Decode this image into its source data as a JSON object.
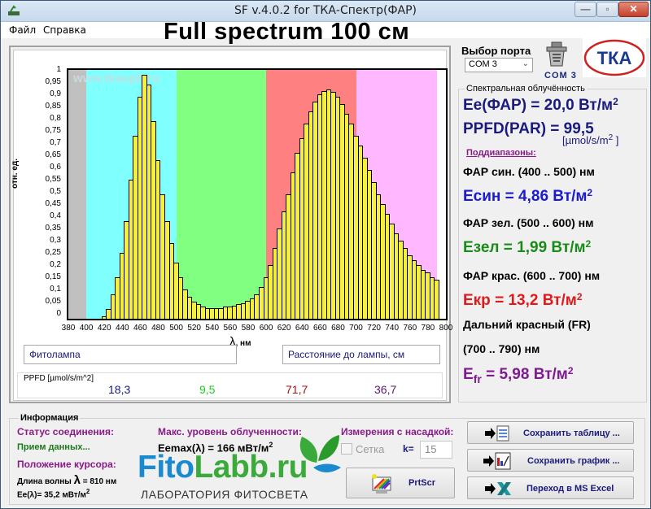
{
  "window": {
    "title": "SF v.4.0.2 for ТКА-Спектр(ФАР)",
    "controls": {
      "minimize": "—",
      "maximize": "▫",
      "close": "✕"
    }
  },
  "menu": {
    "items": [
      {
        "label": "Файл"
      },
      {
        "label": "Справка"
      }
    ]
  },
  "header": {
    "title": "Full spectrum 100 см"
  },
  "chart": {
    "watermark": "www.tkaspb.ru",
    "ylabel": "отн. ед.",
    "xlabel_symbol": "λ",
    "xlabel_unit": ", нм",
    "lamp_field": "Фитолампа",
    "distance_field": "Расстояние до лампы,  см",
    "ppfd_label": "PPFD [µmol/s/m^2]",
    "ppfd_values": [
      {
        "value": "18,3",
        "color": "#1a1a80"
      },
      {
        "value": "9,5",
        "color": "#22cc22"
      },
      {
        "value": "71,7",
        "color": "#aa1111"
      },
      {
        "value": "36,7",
        "color": "#5a1a6a"
      }
    ]
  },
  "chart_data": {
    "type": "bar",
    "title": "Full spectrum 100 см",
    "xlabel": "λ, нм",
    "ylabel": "отн. ед.",
    "xlim": [
      380,
      800
    ],
    "ylim": [
      0,
      1
    ],
    "x_ticks": [
      "380",
      "400",
      "420",
      "440",
      "460",
      "480",
      "500",
      "520",
      "540",
      "560",
      "580",
      "600",
      "620",
      "640",
      "660",
      "680",
      "700",
      "720",
      "740",
      "760",
      "780",
      "800"
    ],
    "y_ticks": [
      "0",
      "0,05",
      "0,1",
      "0,15",
      "0,2",
      "0,25",
      "0,3",
      "0,35",
      "0,4",
      "0,45",
      "0,5",
      "0,55",
      "0,6",
      "0,65",
      "0,7",
      "0,75",
      "0,8",
      "0,85",
      "0,9",
      "0,95",
      "1"
    ],
    "bands": [
      {
        "from": 380,
        "to": 400,
        "color": "#c0c0c0"
      },
      {
        "from": 400,
        "to": 500,
        "color": "#80ffff"
      },
      {
        "from": 500,
        "to": 600,
        "color": "#80ff80"
      },
      {
        "from": 600,
        "to": 700,
        "color": "#ff8080"
      },
      {
        "from": 700,
        "to": 790,
        "color": "#ffb8ff"
      }
    ],
    "bar_color": "#f5f040",
    "x": [
      400,
      405,
      410,
      415,
      420,
      425,
      430,
      435,
      440,
      445,
      450,
      455,
      460,
      465,
      470,
      475,
      480,
      485,
      490,
      495,
      500,
      505,
      510,
      515,
      520,
      525,
      530,
      535,
      540,
      545,
      550,
      555,
      560,
      565,
      570,
      575,
      580,
      585,
      590,
      595,
      600,
      605,
      610,
      615,
      620,
      625,
      630,
      635,
      640,
      645,
      650,
      655,
      660,
      665,
      670,
      675,
      680,
      685,
      690,
      695,
      700,
      705,
      710,
      715,
      720,
      725,
      730,
      735,
      740,
      745,
      750,
      755,
      760,
      765,
      770,
      775,
      780,
      785
    ],
    "values": [
      0,
      0,
      0,
      0.01,
      0.04,
      0.1,
      0.17,
      0.27,
      0.4,
      0.57,
      0.75,
      0.91,
      1.0,
      0.96,
      0.81,
      0.65,
      0.51,
      0.4,
      0.31,
      0.23,
      0.17,
      0.12,
      0.09,
      0.07,
      0.06,
      0.05,
      0.045,
      0.045,
      0.045,
      0.045,
      0.05,
      0.05,
      0.055,
      0.06,
      0.065,
      0.075,
      0.085,
      0.1,
      0.13,
      0.17,
      0.22,
      0.29,
      0.37,
      0.44,
      0.51,
      0.6,
      0.68,
      0.74,
      0.8,
      0.85,
      0.89,
      0.92,
      0.935,
      0.94,
      0.93,
      0.91,
      0.88,
      0.84,
      0.8,
      0.75,
      0.71,
      0.66,
      0.61,
      0.56,
      0.51,
      0.47,
      0.43,
      0.39,
      0.35,
      0.32,
      0.29,
      0.26,
      0.24,
      0.22,
      0.2,
      0.19,
      0.17,
      0.16
    ],
    "grid": false,
    "legend": "none"
  },
  "port": {
    "label": "Выбор порта",
    "selected": "COM 3",
    "status": "COM  3"
  },
  "irradiance": {
    "title": "Спектральная облучённость",
    "ee_par": {
      "text": "Ee(ФАР) = 20,0 Вт/м",
      "sup": "2",
      "color": "#1a1a80"
    },
    "ppfd": {
      "text": "PPFD(PAR) = 99,5",
      "unit": "[µmol/s/m",
      "unit_sup": "2",
      "unit_end": " ]",
      "color": "#1a1a80"
    },
    "subranges_label": "Поддиапазоны:",
    "blue_range": "ФАР син. (400 .. 500) нм",
    "blue_value": {
      "text": "Eсин = 4,86 Вт/м",
      "sup": "2",
      "color": "#1a1ad0"
    },
    "green_range": "ФАР зел. (500 .. 600) нм",
    "green_value": {
      "text": "Eзел = 1,99 Вт/м",
      "sup": "2",
      "color": "#1a8a1a"
    },
    "red_range": "ФАР крас. (600 .. 700) нм",
    "red_value": {
      "text": "Eкр = 13,2 Вт/м",
      "sup": "2",
      "color": "#e01a1a"
    },
    "fr_range_1": "Дальний красный (FR)",
    "fr_range_2": "(700 .. 790) нм",
    "fr_value": {
      "prefix": "E",
      "sub": "fr",
      "text": " = 5,98 Вт/м",
      "sup": "2",
      "color": "#801a90"
    }
  },
  "info": {
    "title": "Информация",
    "status_label": "Статус соединения:",
    "status_value": "Прием данных...",
    "cursor_label": "Положение курсора:",
    "wavelength_label": "Длина волны",
    "wavelength_symbol": "λ",
    "wavelength_value": " = 810 нм",
    "ee_cursor": "Ee(λ)= 35,2 мВт/м",
    "ee_cursor_sup": "2",
    "max_label": "Макс. уровень облученности:",
    "max_value": "Eemax(λ) = 166 мВт/м",
    "max_sup": "2",
    "attachment_label": "Измерения с насадкой:",
    "grid_checkbox": "Сетка",
    "k_label": "k=",
    "k_value": "15"
  },
  "branding": {
    "fito": "Fito",
    "labb": "Labb.ru",
    "subtitle": "ЛАБОРАТОРИЯ ФИТОСВЕТА"
  },
  "buttons": {
    "prtscr": "PrtScr",
    "save_table": "Сохранить таблицу ...",
    "save_chart": "Сохранить график ...",
    "excel": "Переход в MS Excel"
  }
}
